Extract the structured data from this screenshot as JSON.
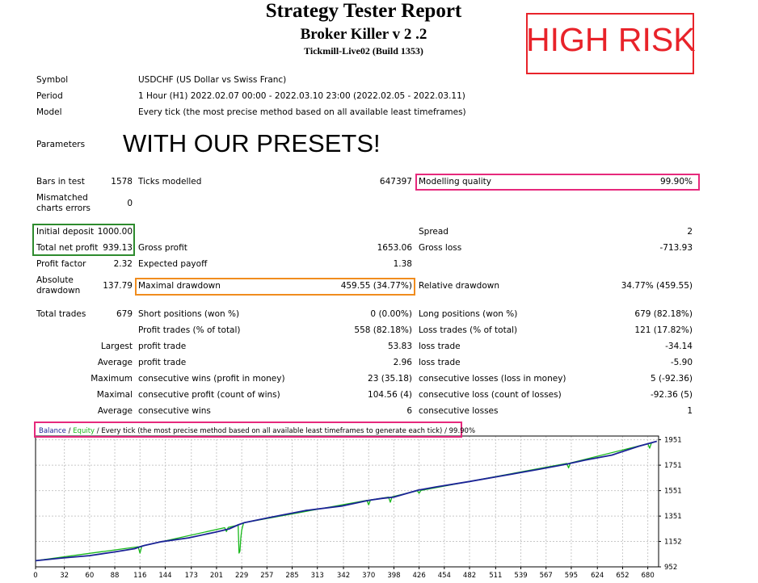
{
  "report": {
    "title": "Strategy Tester Report",
    "expert": "Broker Killer v 2 .2",
    "server": "Tickmill-Live02 (Build 1353)"
  },
  "overlays": {
    "high_risk": "HIGH RISK",
    "presets": "WITH OUR PRESETS!"
  },
  "info": {
    "symbol_label": "Symbol",
    "symbol_value": "USDCHF (US Dollar vs Swiss Franc)",
    "period_label": "Period",
    "period_value": "1 Hour (H1) 2022.02.07 00:00 - 2022.03.10 23:00 (2022.02.05 - 2022.03.11)",
    "model_label": "Model",
    "model_value": "Every tick (the most precise method based on all available least timeframes)",
    "parameters_label": "Parameters"
  },
  "stats": {
    "bars_label": "Bars in test",
    "bars_value": "1578",
    "ticks_label": "Ticks modelled",
    "ticks_value": "647397",
    "quality_label": "Modelling quality",
    "quality_value": "99.90%",
    "mismatch_label_1": "Mismatched",
    "mismatch_label_2": "charts errors",
    "mismatch_value": "0",
    "deposit_label": "Initial deposit",
    "deposit_value": "1000.00",
    "spread_label": "Spread",
    "spread_value": "2",
    "net_label": "Total net profit",
    "net_value": "939.13",
    "gross_profit_label": "Gross profit",
    "gross_profit_value": "1653.06",
    "gross_loss_label": "Gross loss",
    "gross_loss_value": "-713.93",
    "pf_label": "Profit factor",
    "pf_value": "2.32",
    "ep_label": "Expected payoff",
    "ep_value": "1.38",
    "abs_dd_label_1": "Absolute",
    "abs_dd_label_2": "drawdown",
    "abs_dd_value": "137.79",
    "max_dd_label": "Maximal drawdown",
    "max_dd_value": "459.55 (34.77%)",
    "rel_dd_label": "Relative drawdown",
    "rel_dd_value": "34.77% (459.55)",
    "trades_label": "Total trades",
    "trades_value": "679",
    "short_label": "Short positions (won %)",
    "short_value": "0 (0.00%)",
    "long_label": "Long positions (won %)",
    "long_value": "679 (82.18%)",
    "profit_trades_label": "Profit trades (% of total)",
    "profit_trades_value": "558 (82.18%)",
    "loss_trades_label": "Loss trades (% of total)",
    "loss_trades_value": "121 (17.82%)",
    "largest_label": "Largest",
    "largest_profit_label": "profit trade",
    "largest_profit_value": "53.83",
    "largest_loss_label": "loss trade",
    "largest_loss_value": "-34.14",
    "average_label": "Average",
    "avg_profit_label": "profit trade",
    "avg_profit_value": "2.96",
    "avg_loss_label": "loss trade",
    "avg_loss_value": "-5.90",
    "maximum_label": "Maximum",
    "max_cons_wins_label": "consecutive wins (profit in money)",
    "max_cons_wins_value": "23 (35.18)",
    "max_cons_losses_label": "consecutive losses (loss in money)",
    "max_cons_losses_value": "5 (-92.36)",
    "maximal_label": "Maximal",
    "maximal_cons_profit_label": "consecutive profit (count of wins)",
    "maximal_cons_profit_value": "104.56 (4)",
    "maximal_cons_loss_label": "consecutive loss (count of losses)",
    "maximal_cons_loss_value": "-92.36 (5)",
    "average2_label": "Average",
    "avg_cons_wins_label": "consecutive wins",
    "avg_cons_wins_value": "6",
    "avg_cons_losses_label": "consecutive losses",
    "avg_cons_losses_value": "1"
  },
  "colors": {
    "high_risk": "#e8232a",
    "quality_box": "#e6297c",
    "deposit_box": "#2e8b2e",
    "drawdown_box": "#f08c1e",
    "legend_box": "#e6297c",
    "balance": "#1a2296",
    "equity": "#17b81a",
    "grid": "#c8c8c8"
  },
  "chart_data": {
    "type": "line",
    "title": "",
    "legend": {
      "balance": "Balance",
      "sep1": " / ",
      "equity": "Equity",
      "rest": " / Every tick (the most precise method based on all available least timeframes to generate each tick) / 99.90%"
    },
    "xlabel": "",
    "ylabel": "",
    "x_ticks": [
      "0",
      "32",
      "60",
      "88",
      "116",
      "144",
      "173",
      "201",
      "229",
      "257",
      "285",
      "313",
      "342",
      "370",
      "398",
      "426",
      "454",
      "482",
      "511",
      "539",
      "567",
      "595",
      "624",
      "652",
      "680"
    ],
    "y_ticks": [
      "1951",
      "1751",
      "1551",
      "1351",
      "1152",
      "952"
    ],
    "xlim": [
      0,
      692
    ],
    "ylim": [
      952,
      1980
    ],
    "series": [
      {
        "name": "Balance",
        "x": [
          0,
          30,
          60,
          90,
          110,
          116,
          121,
          140,
          170,
          200,
          215,
          225,
          232,
          260,
          300,
          340,
          370,
          385,
          398,
          420,
          425,
          445,
          480,
          520,
          560,
          590,
          610,
          640,
          670,
          690
        ],
        "y": [
          1000,
          1022,
          1040,
          1072,
          1095,
          1110,
          1120,
          1150,
          1180,
          1225,
          1250,
          1282,
          1300,
          1340,
          1395,
          1430,
          1475,
          1490,
          1500,
          1545,
          1555,
          1580,
          1620,
          1670,
          1720,
          1760,
          1790,
          1830,
          1900,
          1939
        ]
      },
      {
        "name": "Equity",
        "x": [
          0,
          114,
          116,
          118,
          210,
          212,
          214,
          225,
          226,
          227,
          228,
          229,
          230,
          231,
          232,
          368,
          370,
          372,
          392,
          394,
          396,
          424,
          426,
          428,
          590,
          592,
          594,
          680,
          682,
          684
        ],
        "y": [
          1000,
          1110,
          1060,
          1115,
          1260,
          1230,
          1262,
          1280,
          1060,
          1075,
          1180,
          1240,
          1270,
          1295,
          1300,
          1475,
          1440,
          1478,
          1500,
          1460,
          1502,
          1550,
          1530,
          1552,
          1765,
          1730,
          1768,
          1920,
          1885,
          1925
        ]
      }
    ]
  }
}
